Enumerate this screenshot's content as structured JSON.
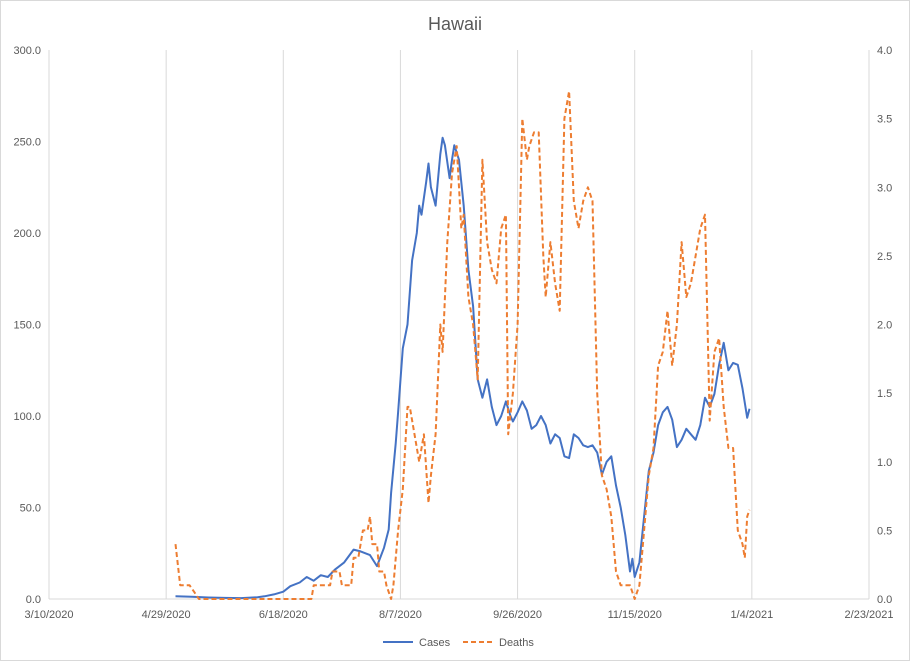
{
  "chart_data": {
    "type": "line",
    "title": "Hawaii",
    "x_axis": {
      "ticks": [
        "3/10/2020",
        "4/29/2020",
        "6/18/2020",
        "8/7/2020",
        "9/26/2020",
        "11/15/2020",
        "1/4/2021",
        "2/23/2021"
      ],
      "range": [
        "3/10/2020",
        "2/23/2021"
      ]
    },
    "y_axis_left": {
      "ticks": [
        "0.0",
        "50.0",
        "100.0",
        "150.0",
        "200.0",
        "250.0",
        "300.0"
      ],
      "ylim": [
        0,
        300
      ]
    },
    "y_axis_right": {
      "ticks": [
        "0.0",
        "0.5",
        "1.0",
        "1.5",
        "2.0",
        "2.5",
        "3.0",
        "3.5",
        "4.0"
      ],
      "ylim": [
        0,
        4
      ]
    },
    "grid": "vertical",
    "legend_position": "bottom",
    "colors": {
      "cases": "#4472C4",
      "deaths": "#ED7D31",
      "grid": "#d9d9d9",
      "text": "#595959"
    },
    "series": [
      {
        "name": "Cases",
        "axis": "left",
        "style": "solid",
        "points": [
          [
            "5/3/2020",
            1.5
          ],
          [
            "5/10/2020",
            1.2
          ],
          [
            "5/17/2020",
            0.8
          ],
          [
            "5/24/2020",
            0.6
          ],
          [
            "5/31/2020",
            0.5
          ],
          [
            "6/7/2020",
            1.0
          ],
          [
            "6/10/2020",
            1.5
          ],
          [
            "6/14/2020",
            2.5
          ],
          [
            "6/18/2020",
            4.0
          ],
          [
            "6/21/2020",
            7.0
          ],
          [
            "6/25/2020",
            9.0
          ],
          [
            "6/28/2020",
            12.0
          ],
          [
            "7/1/2020",
            10.0
          ],
          [
            "7/4/2020",
            13.0
          ],
          [
            "7/7/2020",
            12.0
          ],
          [
            "7/10/2020",
            16.0
          ],
          [
            "7/14/2020",
            20.0
          ],
          [
            "7/18/2020",
            27.0
          ],
          [
            "7/21/2020",
            26.0
          ],
          [
            "7/25/2020",
            24.0
          ],
          [
            "7/28/2020",
            18.0
          ],
          [
            "7/31/2020",
            28.0
          ],
          [
            "8/2/2020",
            38.0
          ],
          [
            "8/3/2020",
            58.0
          ],
          [
            "8/5/2020",
            85.0
          ],
          [
            "8/6/2020",
            102.0
          ],
          [
            "8/8/2020",
            137.0
          ],
          [
            "8/10/2020",
            150.0
          ],
          [
            "8/12/2020",
            185.0
          ],
          [
            "8/14/2020",
            200.0
          ],
          [
            "8/15/2020",
            215.0
          ],
          [
            "8/16/2020",
            210.0
          ],
          [
            "8/18/2020",
            228.0
          ],
          [
            "8/19/2020",
            238.0
          ],
          [
            "8/20/2020",
            225.0
          ],
          [
            "8/22/2020",
            215.0
          ],
          [
            "8/24/2020",
            243.0
          ],
          [
            "8/25/2020",
            252.0
          ],
          [
            "8/26/2020",
            248.0
          ],
          [
            "8/28/2020",
            230.0
          ],
          [
            "8/29/2020",
            240.0
          ],
          [
            "8/30/2020",
            248.0
          ],
          [
            "9/1/2020",
            240.0
          ],
          [
            "9/3/2020",
            215.0
          ],
          [
            "9/5/2020",
            180.0
          ],
          [
            "9/7/2020",
            160.0
          ],
          [
            "9/9/2020",
            120.0
          ],
          [
            "9/11/2020",
            110.0
          ],
          [
            "9/13/2020",
            120.0
          ],
          [
            "9/15/2020",
            105.0
          ],
          [
            "9/17/2020",
            95.0
          ],
          [
            "9/19/2020",
            100.0
          ],
          [
            "9/21/2020",
            108.0
          ],
          [
            "9/23/2020",
            100.0
          ],
          [
            "9/24/2020",
            97.0
          ],
          [
            "9/26/2020",
            102.0
          ],
          [
            "9/28/2020",
            108.0
          ],
          [
            "9/30/2020",
            103.0
          ],
          [
            "10/2/2020",
            93.0
          ],
          [
            "10/4/2020",
            95.0
          ],
          [
            "10/6/2020",
            100.0
          ],
          [
            "10/8/2020",
            95.0
          ],
          [
            "10/10/2020",
            85.0
          ],
          [
            "10/12/2020",
            90.0
          ],
          [
            "10/14/2020",
            88.0
          ],
          [
            "10/16/2020",
            78.0
          ],
          [
            "10/18/2020",
            77.0
          ],
          [
            "10/20/2020",
            90.0
          ],
          [
            "10/22/2020",
            88.0
          ],
          [
            "10/24/2020",
            84.0
          ],
          [
            "10/26/2020",
            83.0
          ],
          [
            "10/28/2020",
            84.0
          ],
          [
            "10/30/2020",
            80.0
          ],
          [
            "11/1/2020",
            68.0
          ],
          [
            "11/3/2020",
            75.0
          ],
          [
            "11/5/2020",
            78.0
          ],
          [
            "11/7/2020",
            62.0
          ],
          [
            "11/9/2020",
            50.0
          ],
          [
            "11/11/2020",
            35.0
          ],
          [
            "11/13/2020",
            15.0
          ],
          [
            "11/14/2020",
            22.0
          ],
          [
            "11/15/2020",
            12.0
          ],
          [
            "11/17/2020",
            20.0
          ],
          [
            "11/19/2020",
            45.0
          ],
          [
            "11/21/2020",
            70.0
          ],
          [
            "11/23/2020",
            80.0
          ],
          [
            "11/25/2020",
            95.0
          ],
          [
            "11/27/2020",
            102.0
          ],
          [
            "11/29/2020",
            105.0
          ],
          [
            "12/1/2020",
            98.0
          ],
          [
            "12/3/2020",
            83.0
          ],
          [
            "12/5/2020",
            87.0
          ],
          [
            "12/7/2020",
            93.0
          ],
          [
            "12/9/2020",
            90.0
          ],
          [
            "12/11/2020",
            87.0
          ],
          [
            "12/13/2020",
            95.0
          ],
          [
            "12/15/2020",
            110.0
          ],
          [
            "12/17/2020",
            105.0
          ],
          [
            "12/19/2020",
            112.0
          ],
          [
            "12/21/2020",
            128.0
          ],
          [
            "12/23/2020",
            140.0
          ],
          [
            "12/25/2020",
            125.0
          ],
          [
            "12/27/2020",
            129.0
          ],
          [
            "12/29/2020",
            128.0
          ],
          [
            "12/31/2020",
            115.0
          ],
          [
            "1/2/2021",
            99.0
          ],
          [
            "1/3/2021",
            104.0
          ]
        ]
      },
      {
        "name": "Deaths",
        "axis": "right",
        "style": "dashed",
        "points": [
          [
            "5/3/2020",
            0.4
          ],
          [
            "5/5/2020",
            0.1
          ],
          [
            "5/9/2020",
            0.1
          ],
          [
            "5/11/2020",
            0.05
          ],
          [
            "5/13/2020",
            0.0
          ],
          [
            "5/25/2020",
            0.0
          ],
          [
            "6/18/2020",
            0.0
          ],
          [
            "6/30/2020",
            0.0
          ],
          [
            "7/1/2020",
            0.1
          ],
          [
            "7/8/2020",
            0.1
          ],
          [
            "7/9/2020",
            0.2
          ],
          [
            "7/12/2020",
            0.2
          ],
          [
            "7/13/2020",
            0.1
          ],
          [
            "7/17/2020",
            0.1
          ],
          [
            "7/18/2020",
            0.3
          ],
          [
            "7/20/2020",
            0.3
          ],
          [
            "7/22/2020",
            0.5
          ],
          [
            "7/24/2020",
            0.5
          ],
          [
            "7/25/2020",
            0.6
          ],
          [
            "7/26/2020",
            0.4
          ],
          [
            "7/28/2020",
            0.4
          ],
          [
            "7/29/2020",
            0.2
          ],
          [
            "7/31/2020",
            0.2
          ],
          [
            "8/1/2020",
            0.1
          ],
          [
            "8/3/2020",
            0.0
          ],
          [
            "8/4/2020",
            0.1
          ],
          [
            "8/6/2020",
            0.5
          ],
          [
            "8/8/2020",
            0.8
          ],
          [
            "8/10/2020",
            1.4
          ],
          [
            "8/11/2020",
            1.4
          ],
          [
            "8/13/2020",
            1.2
          ],
          [
            "8/15/2020",
            1.0
          ],
          [
            "8/17/2020",
            1.2
          ],
          [
            "8/19/2020",
            0.7
          ],
          [
            "8/20/2020",
            0.9
          ],
          [
            "8/22/2020",
            1.2
          ],
          [
            "8/24/2020",
            2.0
          ],
          [
            "8/25/2020",
            1.8
          ],
          [
            "8/27/2020",
            2.6
          ],
          [
            "8/29/2020",
            3.1
          ],
          [
            "8/31/2020",
            3.3
          ],
          [
            "9/2/2020",
            2.7
          ],
          [
            "9/3/2020",
            2.8
          ],
          [
            "9/5/2020",
            2.2
          ],
          [
            "9/7/2020",
            2.0
          ],
          [
            "9/9/2020",
            1.6
          ],
          [
            "9/11/2020",
            3.2
          ],
          [
            "9/13/2020",
            2.6
          ],
          [
            "9/15/2020",
            2.4
          ],
          [
            "9/17/2020",
            2.3
          ],
          [
            "9/19/2020",
            2.7
          ],
          [
            "9/21/2020",
            2.8
          ],
          [
            "9/22/2020",
            1.2
          ],
          [
            "9/24/2020",
            1.5
          ],
          [
            "9/26/2020",
            2.0
          ],
          [
            "9/28/2020",
            3.5
          ],
          [
            "9/30/2020",
            3.2
          ],
          [
            "10/1/2020",
            3.3
          ],
          [
            "10/3/2020",
            3.4
          ],
          [
            "10/5/2020",
            3.4
          ],
          [
            "10/7/2020",
            2.5
          ],
          [
            "10/8/2020",
            2.2
          ],
          [
            "10/10/2020",
            2.6
          ],
          [
            "10/12/2020",
            2.3
          ],
          [
            "10/14/2020",
            2.1
          ],
          [
            "10/16/2020",
            3.5
          ],
          [
            "10/18/2020",
            3.7
          ],
          [
            "10/20/2020",
            2.9
          ],
          [
            "10/22/2020",
            2.7
          ],
          [
            "10/24/2020",
            2.9
          ],
          [
            "10/26/2020",
            3.0
          ],
          [
            "10/28/2020",
            2.9
          ],
          [
            "10/30/2020",
            1.5
          ],
          [
            "11/1/2020",
            0.9
          ],
          [
            "11/3/2020",
            0.8
          ],
          [
            "11/5/2020",
            0.6
          ],
          [
            "11/7/2020",
            0.2
          ],
          [
            "11/9/2020",
            0.1
          ],
          [
            "11/11/2020",
            0.1
          ],
          [
            "11/13/2020",
            0.1
          ],
          [
            "11/15/2020",
            0.0
          ],
          [
            "11/17/2020",
            0.1
          ],
          [
            "11/19/2020",
            0.5
          ],
          [
            "11/21/2020",
            0.9
          ],
          [
            "11/23/2020",
            1.1
          ],
          [
            "11/25/2020",
            1.7
          ],
          [
            "11/27/2020",
            1.8
          ],
          [
            "11/29/2020",
            2.1
          ],
          [
            "12/1/2020",
            1.7
          ],
          [
            "12/3/2020",
            2.0
          ],
          [
            "12/5/2020",
            2.6
          ],
          [
            "12/7/2020",
            2.2
          ],
          [
            "12/9/2020",
            2.3
          ],
          [
            "12/11/2020",
            2.5
          ],
          [
            "12/13/2020",
            2.7
          ],
          [
            "12/15/2020",
            2.8
          ],
          [
            "12/17/2020",
            1.3
          ],
          [
            "12/19/2020",
            1.8
          ],
          [
            "12/21/2020",
            1.9
          ],
          [
            "12/23/2020",
            1.4
          ],
          [
            "12/25/2020",
            1.1
          ],
          [
            "12/27/2020",
            1.1
          ],
          [
            "12/29/2020",
            0.5
          ],
          [
            "12/31/2020",
            0.4
          ],
          [
            "1/1/2021",
            0.3
          ],
          [
            "1/2/2021",
            0.6
          ],
          [
            "1/3/2021",
            0.65
          ]
        ]
      }
    ]
  }
}
